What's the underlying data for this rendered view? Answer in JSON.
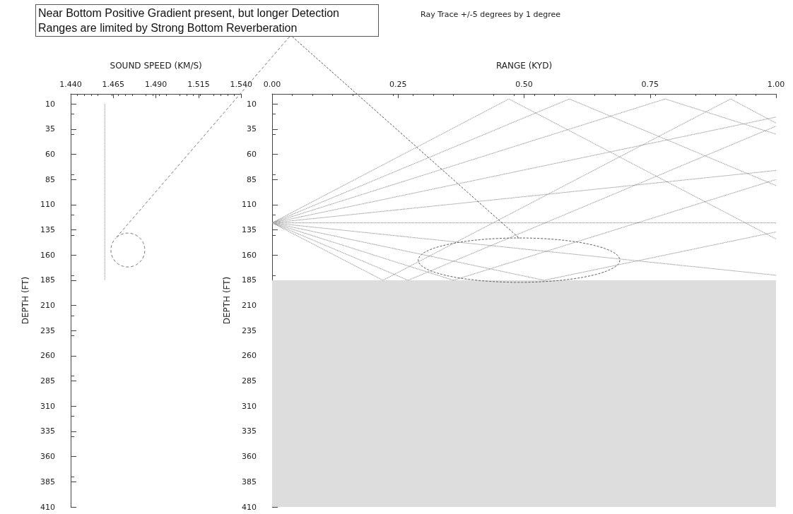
{
  "chart_data": [
    {
      "type": "line",
      "xlabel": "SOUND SPEED (KM/S)",
      "ylabel": "DEPTH (FT)",
      "annotations": [
        "Near Bottom Positive Gradient present, but longer Detection Ranges are limited by Strong Bottom Reverberation"
      ],
      "xlim": [
        1.44,
        1.54
      ],
      "xticks": [
        {
          "value": 1.44,
          "label": "1.440"
        },
        {
          "value": 1.465,
          "label": "1.465"
        },
        {
          "value": 1.49,
          "label": "1.490"
        },
        {
          "value": 1.515,
          "label": "1.515"
        },
        {
          "value": 1.54,
          "label": "1.540"
        }
      ],
      "ylim": [
        410,
        0
      ],
      "yticks": [
        10,
        35,
        60,
        85,
        110,
        135,
        160,
        185,
        210,
        235,
        260,
        285,
        310,
        335,
        360,
        385,
        410
      ],
      "grid": false,
      "marker": "none",
      "line_style": "dotted",
      "series": [
        {
          "color": "#777777",
          "x": [
            1.46,
            1.46
          ],
          "values": [
            10,
            185
          ]
        }
      ]
    },
    {
      "type": "line",
      "title": "Ray Trace +/-5 degrees by 1 degree",
      "xlabel": "RANGE (KYD)",
      "ylabel": "DEPTH (FT)",
      "xlim": [
        0,
        1
      ],
      "xticks": [
        {
          "value": 0,
          "label": "0.00"
        },
        {
          "value": 0.25,
          "label": "0.25"
        },
        {
          "value": 0.5,
          "label": "0.50"
        },
        {
          "value": 0.75,
          "label": "0.75"
        },
        {
          "value": 1,
          "label": "1.00"
        }
      ],
      "ylim": [
        410,
        0
      ],
      "yticks": [
        10,
        35,
        60,
        85,
        110,
        135,
        160,
        185,
        210,
        235,
        260,
        285,
        310,
        335,
        360,
        385,
        410
      ],
      "grid": false,
      "marker": "none",
      "line_style": "dotted",
      "bands": [
        {
          "axis": "y",
          "from": 185,
          "to": 410,
          "color": "#dddddd"
        }
      ],
      "series": [
        {
          "color": "#777777",
          "x": [
            0,
            0.47,
            1
          ],
          "values": [
            128,
            5,
            144
          ]
        },
        {
          "color": "#777777",
          "x": [
            0,
            0.59,
            1
          ],
          "values": [
            128,
            5,
            91
          ]
        },
        {
          "color": "#777777",
          "x": [
            0,
            0.78,
            1
          ],
          "values": [
            128,
            5,
            40
          ]
        },
        {
          "color": "#777777",
          "x": [
            0,
            1
          ],
          "values": [
            128,
            23
          ]
        },
        {
          "color": "#777777",
          "x": [
            0,
            1
          ],
          "values": [
            128,
            76
          ]
        },
        {
          "color": "#777777",
          "x": [
            0,
            1
          ],
          "values": [
            128,
            128
          ]
        },
        {
          "color": "#777777",
          "x": [
            0,
            1
          ],
          "values": [
            128,
            180
          ]
        },
        {
          "color": "#777777",
          "x": [
            0,
            0.54,
            1
          ],
          "values": [
            128,
            185,
            137
          ]
        },
        {
          "color": "#777777",
          "x": [
            0,
            0.36,
            1
          ],
          "values": [
            128,
            185,
            85
          ]
        },
        {
          "color": "#777777",
          "x": [
            0,
            0.27,
            1
          ],
          "values": [
            128,
            185,
            32
          ]
        },
        {
          "color": "#777777",
          "x": [
            0,
            0.22,
            0.91,
            1
          ],
          "values": [
            128,
            185,
            5,
            29
          ]
        }
      ]
    }
  ]
}
